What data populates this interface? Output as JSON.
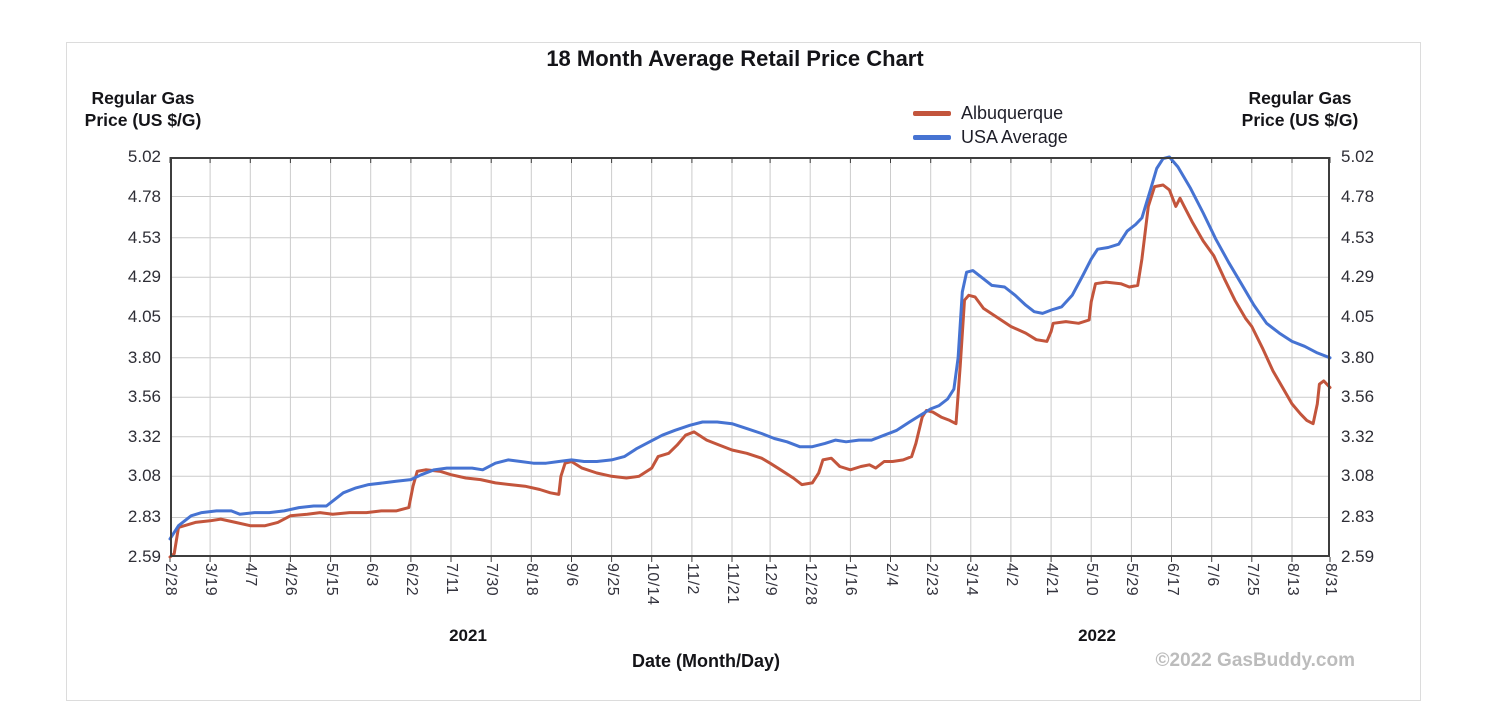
{
  "watermark": "©2022 GasBuddy.com",
  "left_axis_header": {
    "line1": "Regular Gas",
    "line2": "Price (US $/G)"
  },
  "right_axis_header": {
    "line1": "Regular Gas",
    "line2": "Price (US $/G)"
  },
  "chart_data": {
    "type": "line",
    "title": "18 Month Average Retail Price Chart",
    "grid": true,
    "legend_position": "top-right",
    "colors": {
      "grid": "#cccccc",
      "axis": "#3d3d3d",
      "background": "#ffffff"
    },
    "y_axis": {
      "label": "Regular Gas Price (US $/G)",
      "min": 2.59,
      "max": 5.02,
      "tick_labels": [
        "5.02",
        "4.78",
        "4.53",
        "4.29",
        "4.05",
        "3.80",
        "3.56",
        "3.32",
        "3.08",
        "2.83",
        "2.59"
      ]
    },
    "x_axis": {
      "label": "Date (Month/Day)",
      "start_date": "2021-02-28",
      "end_date": "2022-08-31",
      "year_labels": [
        "2021",
        "2022"
      ],
      "ticks": [
        {
          "label": "2/28",
          "date": "2021-02-28"
        },
        {
          "label": "3/19",
          "date": "2021-03-19"
        },
        {
          "label": "4/7",
          "date": "2021-04-07"
        },
        {
          "label": "4/26",
          "date": "2021-04-26"
        },
        {
          "label": "5/15",
          "date": "2021-05-15"
        },
        {
          "label": "6/3",
          "date": "2021-06-03"
        },
        {
          "label": "6/22",
          "date": "2021-06-22"
        },
        {
          "label": "7/11",
          "date": "2021-07-11"
        },
        {
          "label": "7/30",
          "date": "2021-07-30"
        },
        {
          "label": "8/18",
          "date": "2021-08-18"
        },
        {
          "label": "9/6",
          "date": "2021-09-06"
        },
        {
          "label": "9/25",
          "date": "2021-09-25"
        },
        {
          "label": "10/14",
          "date": "2021-10-14"
        },
        {
          "label": "11/2",
          "date": "2021-11-02"
        },
        {
          "label": "11/21",
          "date": "2021-11-21"
        },
        {
          "label": "12/9",
          "date": "2021-12-09"
        },
        {
          "label": "12/28",
          "date": "2021-12-28"
        },
        {
          "label": "1/16",
          "date": "2022-01-16"
        },
        {
          "label": "2/4",
          "date": "2022-02-04"
        },
        {
          "label": "2/23",
          "date": "2022-02-23"
        },
        {
          "label": "3/14",
          "date": "2022-03-14"
        },
        {
          "label": "4/2",
          "date": "2022-04-02"
        },
        {
          "label": "4/21",
          "date": "2022-04-21"
        },
        {
          "label": "5/10",
          "date": "2022-05-10"
        },
        {
          "label": "5/29",
          "date": "2022-05-29"
        },
        {
          "label": "6/17",
          "date": "2022-06-17"
        },
        {
          "label": "7/6",
          "date": "2022-07-06"
        },
        {
          "label": "7/25",
          "date": "2022-07-25"
        },
        {
          "label": "8/13",
          "date": "2022-08-13"
        },
        {
          "label": "8/31",
          "date": "2022-08-31"
        }
      ]
    },
    "series": [
      {
        "name": "Albuquerque",
        "color": "#c3553c",
        "points": [
          [
            "2021-02-28",
            2.59
          ],
          [
            "2021-03-02",
            2.61
          ],
          [
            "2021-03-04",
            2.77
          ],
          [
            "2021-03-12",
            2.8
          ],
          [
            "2021-03-19",
            2.81
          ],
          [
            "2021-03-24",
            2.82
          ],
          [
            "2021-03-31",
            2.8
          ],
          [
            "2021-04-07",
            2.78
          ],
          [
            "2021-04-14",
            2.78
          ],
          [
            "2021-04-20",
            2.8
          ],
          [
            "2021-04-26",
            2.84
          ],
          [
            "2021-05-04",
            2.85
          ],
          [
            "2021-05-10",
            2.86
          ],
          [
            "2021-05-16",
            2.85
          ],
          [
            "2021-05-24",
            2.86
          ],
          [
            "2021-06-01",
            2.86
          ],
          [
            "2021-06-08",
            2.87
          ],
          [
            "2021-06-15",
            2.87
          ],
          [
            "2021-06-21",
            2.89
          ],
          [
            "2021-06-23",
            3.02
          ],
          [
            "2021-06-25",
            3.11
          ],
          [
            "2021-06-29",
            3.12
          ],
          [
            "2021-07-06",
            3.11
          ],
          [
            "2021-07-11",
            3.09
          ],
          [
            "2021-07-18",
            3.07
          ],
          [
            "2021-07-25",
            3.06
          ],
          [
            "2021-08-01",
            3.04
          ],
          [
            "2021-08-08",
            3.03
          ],
          [
            "2021-08-15",
            3.02
          ],
          [
            "2021-08-22",
            3.0
          ],
          [
            "2021-08-27",
            2.98
          ],
          [
            "2021-08-31",
            2.97
          ],
          [
            "2021-09-01",
            3.08
          ],
          [
            "2021-09-03",
            3.16
          ],
          [
            "2021-09-06",
            3.17
          ],
          [
            "2021-09-11",
            3.13
          ],
          [
            "2021-09-18",
            3.1
          ],
          [
            "2021-09-25",
            3.08
          ],
          [
            "2021-10-02",
            3.07
          ],
          [
            "2021-10-08",
            3.08
          ],
          [
            "2021-10-14",
            3.13
          ],
          [
            "2021-10-17",
            3.2
          ],
          [
            "2021-10-22",
            3.22
          ],
          [
            "2021-10-26",
            3.27
          ],
          [
            "2021-10-30",
            3.33
          ],
          [
            "2021-11-03",
            3.35
          ],
          [
            "2021-11-09",
            3.3
          ],
          [
            "2021-11-15",
            3.27
          ],
          [
            "2021-11-21",
            3.24
          ],
          [
            "2021-11-28",
            3.22
          ],
          [
            "2021-12-05",
            3.19
          ],
          [
            "2021-12-09",
            3.16
          ],
          [
            "2021-12-14",
            3.12
          ],
          [
            "2021-12-20",
            3.07
          ],
          [
            "2021-12-24",
            3.03
          ],
          [
            "2021-12-29",
            3.04
          ],
          [
            "2022-01-01",
            3.1
          ],
          [
            "2022-01-03",
            3.18
          ],
          [
            "2022-01-07",
            3.19
          ],
          [
            "2022-01-11",
            3.14
          ],
          [
            "2022-01-16",
            3.12
          ],
          [
            "2022-01-21",
            3.14
          ],
          [
            "2022-01-25",
            3.15
          ],
          [
            "2022-01-28",
            3.13
          ],
          [
            "2022-02-01",
            3.17
          ],
          [
            "2022-02-05",
            3.17
          ],
          [
            "2022-02-10",
            3.18
          ],
          [
            "2022-02-14",
            3.2
          ],
          [
            "2022-02-16",
            3.28
          ],
          [
            "2022-02-19",
            3.44
          ],
          [
            "2022-02-21",
            3.48
          ],
          [
            "2022-02-24",
            3.47
          ],
          [
            "2022-02-28",
            3.44
          ],
          [
            "2022-03-04",
            3.42
          ],
          [
            "2022-03-07",
            3.4
          ],
          [
            "2022-03-09",
            3.75
          ],
          [
            "2022-03-11",
            4.15
          ],
          [
            "2022-03-13",
            4.18
          ],
          [
            "2022-03-16",
            4.17
          ],
          [
            "2022-03-20",
            4.1
          ],
          [
            "2022-03-26",
            4.05
          ],
          [
            "2022-04-02",
            3.99
          ],
          [
            "2022-04-09",
            3.95
          ],
          [
            "2022-04-14",
            3.91
          ],
          [
            "2022-04-19",
            3.9
          ],
          [
            "2022-04-21",
            3.96
          ],
          [
            "2022-04-22",
            4.01
          ],
          [
            "2022-04-28",
            4.02
          ],
          [
            "2022-05-04",
            4.01
          ],
          [
            "2022-05-09",
            4.03
          ],
          [
            "2022-05-10",
            4.14
          ],
          [
            "2022-05-12",
            4.25
          ],
          [
            "2022-05-17",
            4.26
          ],
          [
            "2022-05-24",
            4.25
          ],
          [
            "2022-05-28",
            4.23
          ],
          [
            "2022-06-01",
            4.24
          ],
          [
            "2022-06-03",
            4.4
          ],
          [
            "2022-06-06",
            4.72
          ],
          [
            "2022-06-09",
            4.84
          ],
          [
            "2022-06-13",
            4.85
          ],
          [
            "2022-06-16",
            4.82
          ],
          [
            "2022-06-19",
            4.72
          ],
          [
            "2022-06-21",
            4.77
          ],
          [
            "2022-06-23",
            4.72
          ],
          [
            "2022-06-27",
            4.62
          ],
          [
            "2022-07-02",
            4.51
          ],
          [
            "2022-07-07",
            4.42
          ],
          [
            "2022-07-12",
            4.28
          ],
          [
            "2022-07-17",
            4.15
          ],
          [
            "2022-07-22",
            4.04
          ],
          [
            "2022-07-25",
            3.99
          ],
          [
            "2022-07-30",
            3.86
          ],
          [
            "2022-08-04",
            3.72
          ],
          [
            "2022-08-09",
            3.61
          ],
          [
            "2022-08-13",
            3.52
          ],
          [
            "2022-08-17",
            3.46
          ],
          [
            "2022-08-20",
            3.42
          ],
          [
            "2022-08-23",
            3.4
          ],
          [
            "2022-08-25",
            3.52
          ],
          [
            "2022-08-26",
            3.64
          ],
          [
            "2022-08-28",
            3.66
          ],
          [
            "2022-08-31",
            3.62
          ]
        ]
      },
      {
        "name": "USA Average",
        "color": "#4673d2",
        "points": [
          [
            "2021-02-28",
            2.7
          ],
          [
            "2021-03-04",
            2.78
          ],
          [
            "2021-03-10",
            2.84
          ],
          [
            "2021-03-15",
            2.86
          ],
          [
            "2021-03-22",
            2.87
          ],
          [
            "2021-03-29",
            2.87
          ],
          [
            "2021-04-02",
            2.85
          ],
          [
            "2021-04-09",
            2.86
          ],
          [
            "2021-04-16",
            2.86
          ],
          [
            "2021-04-23",
            2.87
          ],
          [
            "2021-04-30",
            2.89
          ],
          [
            "2021-05-07",
            2.9
          ],
          [
            "2021-05-13",
            2.9
          ],
          [
            "2021-05-17",
            2.94
          ],
          [
            "2021-05-21",
            2.98
          ],
          [
            "2021-05-27",
            3.01
          ],
          [
            "2021-06-02",
            3.03
          ],
          [
            "2021-06-09",
            3.04
          ],
          [
            "2021-06-15",
            3.05
          ],
          [
            "2021-06-22",
            3.06
          ],
          [
            "2021-06-27",
            3.09
          ],
          [
            "2021-07-03",
            3.12
          ],
          [
            "2021-07-09",
            3.13
          ],
          [
            "2021-07-15",
            3.13
          ],
          [
            "2021-07-21",
            3.13
          ],
          [
            "2021-07-26",
            3.12
          ],
          [
            "2021-08-01",
            3.16
          ],
          [
            "2021-08-07",
            3.18
          ],
          [
            "2021-08-13",
            3.17
          ],
          [
            "2021-08-19",
            3.16
          ],
          [
            "2021-08-25",
            3.16
          ],
          [
            "2021-08-31",
            3.17
          ],
          [
            "2021-09-06",
            3.18
          ],
          [
            "2021-09-12",
            3.17
          ],
          [
            "2021-09-18",
            3.17
          ],
          [
            "2021-09-25",
            3.18
          ],
          [
            "2021-10-01",
            3.2
          ],
          [
            "2021-10-07",
            3.25
          ],
          [
            "2021-10-13",
            3.29
          ],
          [
            "2021-10-19",
            3.33
          ],
          [
            "2021-10-25",
            3.36
          ],
          [
            "2021-11-01",
            3.39
          ],
          [
            "2021-11-07",
            3.41
          ],
          [
            "2021-11-14",
            3.41
          ],
          [
            "2021-11-21",
            3.4
          ],
          [
            "2021-11-28",
            3.37
          ],
          [
            "2021-12-05",
            3.34
          ],
          [
            "2021-12-11",
            3.31
          ],
          [
            "2021-12-17",
            3.29
          ],
          [
            "2021-12-23",
            3.26
          ],
          [
            "2021-12-29",
            3.26
          ],
          [
            "2022-01-04",
            3.28
          ],
          [
            "2022-01-09",
            3.3
          ],
          [
            "2022-01-14",
            3.29
          ],
          [
            "2022-01-20",
            3.3
          ],
          [
            "2022-01-26",
            3.3
          ],
          [
            "2022-02-01",
            3.33
          ],
          [
            "2022-02-07",
            3.36
          ],
          [
            "2022-02-13",
            3.41
          ],
          [
            "2022-02-18",
            3.45
          ],
          [
            "2022-02-23",
            3.49
          ],
          [
            "2022-02-27",
            3.51
          ],
          [
            "2022-03-03",
            3.55
          ],
          [
            "2022-03-06",
            3.61
          ],
          [
            "2022-03-08",
            3.8
          ],
          [
            "2022-03-10",
            4.2
          ],
          [
            "2022-03-12",
            4.32
          ],
          [
            "2022-03-15",
            4.33
          ],
          [
            "2022-03-19",
            4.29
          ],
          [
            "2022-03-24",
            4.24
          ],
          [
            "2022-03-30",
            4.23
          ],
          [
            "2022-04-04",
            4.18
          ],
          [
            "2022-04-09",
            4.12
          ],
          [
            "2022-04-13",
            4.08
          ],
          [
            "2022-04-17",
            4.07
          ],
          [
            "2022-04-21",
            4.09
          ],
          [
            "2022-04-26",
            4.11
          ],
          [
            "2022-05-01",
            4.18
          ],
          [
            "2022-05-06",
            4.3
          ],
          [
            "2022-05-10",
            4.4
          ],
          [
            "2022-05-13",
            4.46
          ],
          [
            "2022-05-18",
            4.47
          ],
          [
            "2022-05-23",
            4.49
          ],
          [
            "2022-05-27",
            4.57
          ],
          [
            "2022-05-31",
            4.61
          ],
          [
            "2022-06-03",
            4.65
          ],
          [
            "2022-06-07",
            4.82
          ],
          [
            "2022-06-10",
            4.95
          ],
          [
            "2022-06-13",
            5.01
          ],
          [
            "2022-06-16",
            5.02
          ],
          [
            "2022-06-20",
            4.96
          ],
          [
            "2022-06-26",
            4.83
          ],
          [
            "2022-07-02",
            4.68
          ],
          [
            "2022-07-08",
            4.52
          ],
          [
            "2022-07-14",
            4.38
          ],
          [
            "2022-07-20",
            4.25
          ],
          [
            "2022-07-26",
            4.12
          ],
          [
            "2022-08-01",
            4.01
          ],
          [
            "2022-08-07",
            3.95
          ],
          [
            "2022-08-13",
            3.9
          ],
          [
            "2022-08-19",
            3.87
          ],
          [
            "2022-08-25",
            3.83
          ],
          [
            "2022-08-31",
            3.8
          ]
        ]
      }
    ]
  }
}
